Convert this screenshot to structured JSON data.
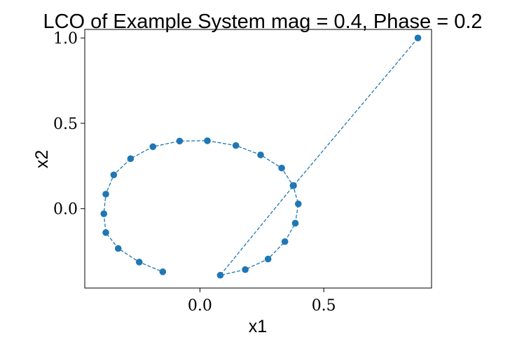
{
  "chart_data": {
    "type": "line",
    "title": "LCO of Example System mag = 0.4, Phase = 0.2",
    "xlabel": "x1",
    "ylabel": "x2",
    "xlim": [
      -0.465,
      0.935
    ],
    "ylim": [
      -0.465,
      1.05
    ],
    "xticks": [
      0.0,
      0.5
    ],
    "xtick_labels": [
      "0.0",
      "0.5"
    ],
    "yticks": [
      0.0,
      0.5,
      1.0
    ],
    "ytick_labels": [
      "0.0",
      "0.5",
      "1.0"
    ],
    "grid": false,
    "line_style": "dashed",
    "marker": "circle",
    "color": "#1f77b4",
    "series": [
      {
        "x": [
          0.88,
          0.378,
          0.082,
          0.183,
          0.275,
          0.343,
          0.385,
          0.397,
          0.376,
          0.33,
          0.245,
          0.145,
          0.03,
          -0.082,
          -0.19,
          -0.28,
          -0.348,
          -0.38,
          -0.388,
          -0.38,
          -0.33,
          -0.245,
          -0.15
        ],
        "y": [
          1.0,
          0.135,
          -0.39,
          -0.357,
          -0.295,
          -0.193,
          -0.085,
          0.028,
          0.135,
          0.238,
          0.315,
          0.37,
          0.398,
          0.396,
          0.363,
          0.293,
          0.198,
          0.085,
          -0.03,
          -0.14,
          -0.233,
          -0.313,
          -0.37
        ]
      }
    ]
  }
}
